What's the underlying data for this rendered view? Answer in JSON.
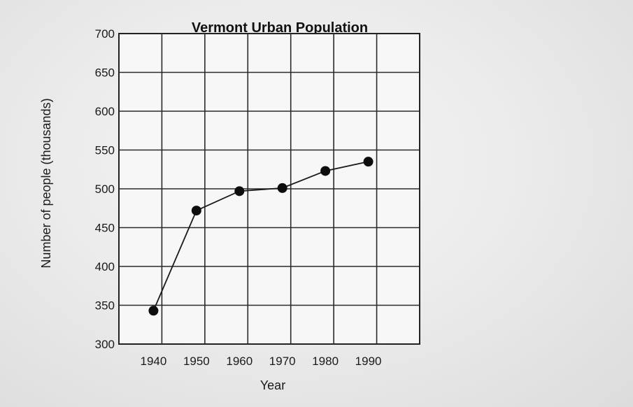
{
  "chart_data": {
    "type": "line",
    "title": "Vermont Urban Population",
    "xlabel": "Year",
    "ylabel": "Number of people (thousands)",
    "x": [
      1940,
      1950,
      1960,
      1970,
      1980,
      1990
    ],
    "x_ticks": [
      "1940",
      "1950",
      "1960",
      "1970",
      "1980",
      "1990"
    ],
    "y_ticks": [
      "700",
      "650",
      "600",
      "550",
      "500",
      "450",
      "400",
      "350",
      "300"
    ],
    "ylim": [
      300,
      700
    ],
    "grid": true,
    "series": [
      {
        "values": [
          343,
          472,
          497,
          501,
          523,
          535
        ]
      }
    ]
  }
}
